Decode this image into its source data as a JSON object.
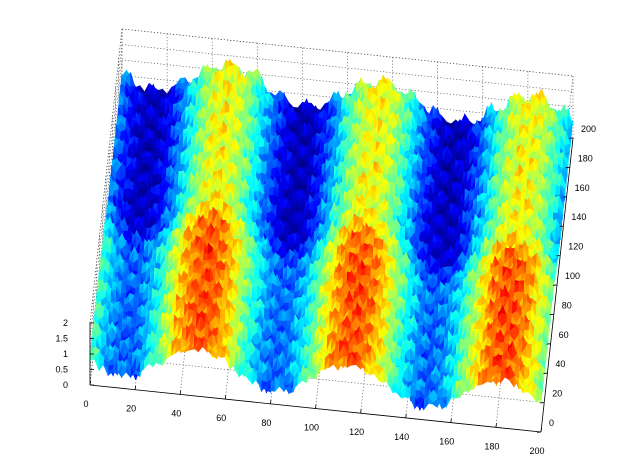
{
  "chart_data": {
    "type": "surface",
    "colormap": "jet",
    "x_range": [
      0,
      200
    ],
    "y_range": [
      0,
      200
    ],
    "z_range": [
      0,
      2
    ],
    "x_ticks": [
      0,
      20,
      40,
      60,
      80,
      100,
      120,
      140,
      160,
      180,
      200
    ],
    "y_ticks": [
      0,
      20,
      40,
      60,
      80,
      100,
      120,
      140,
      160,
      180,
      200
    ],
    "z_ticks": [
      0,
      0.5,
      1,
      1.5,
      2
    ],
    "x_tick_labels": [
      "0",
      "20",
      "40",
      "60",
      "80",
      "100",
      "120",
      "140",
      "160",
      "180",
      "200"
    ],
    "y_tick_labels": [
      "0",
      "20",
      "40",
      "60",
      "80",
      "100",
      "120",
      "140",
      "160",
      "180",
      "200"
    ],
    "z_tick_labels": [
      "0",
      "0.5",
      "1",
      "1.5",
      "2"
    ],
    "grid": true,
    "surface_pattern": {
      "description_of_bands": "alternating high and low ridges along x",
      "low_band_centers_x": [
        13,
        82,
        148
      ],
      "high_band_centers_x": [
        48,
        117,
        183
      ],
      "back_half_level_shift": 0.35
    }
  }
}
